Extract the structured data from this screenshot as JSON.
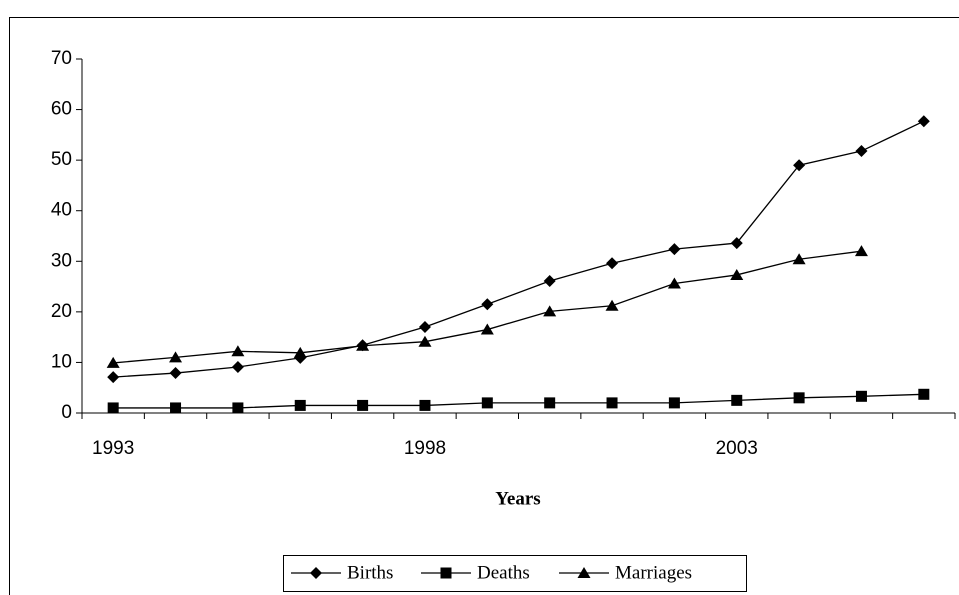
{
  "chart_data": {
    "type": "line",
    "x_label": "Years",
    "categories": [
      "1993",
      null,
      null,
      null,
      null,
      "1998",
      null,
      null,
      null,
      null,
      "2003",
      null,
      null,
      null
    ],
    "series": [
      {
        "name": "Births",
        "color": "#000000",
        "marker": "diamond",
        "values": [
          7.1,
          7.9,
          9.1,
          10.9,
          13.4,
          17,
          21.5,
          26.1,
          29.6,
          32.4,
          33.6,
          49,
          51.8,
          57.7
        ]
      },
      {
        "name": "Deaths",
        "color": "#000000",
        "marker": "square",
        "values": [
          1,
          1,
          1,
          1.5,
          1.5,
          1.5,
          2,
          2,
          2,
          2,
          2.5,
          3,
          3.3,
          3.7
        ]
      },
      {
        "name": "Marriages",
        "color": "#000000",
        "marker": "triangle",
        "values": [
          9.9,
          11,
          12.2,
          11.9,
          13.3,
          14.1,
          16.5,
          20.1,
          21.2,
          25.6,
          27.3,
          30.4,
          32,
          null
        ]
      }
    ],
    "ylim": [
      0,
      70
    ],
    "yticks": [
      0,
      10,
      20,
      30,
      40,
      50,
      60,
      70
    ],
    "grid": false,
    "legend": "bottom"
  }
}
